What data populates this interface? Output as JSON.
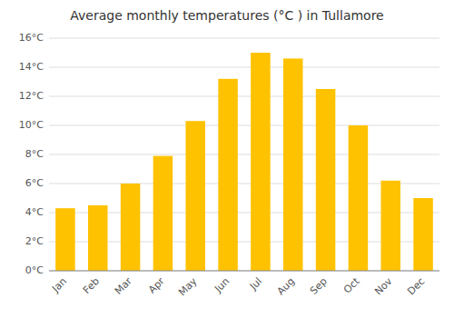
{
  "chart_data": {
    "type": "bar",
    "title": "Average monthly temperatures (°C ) in Tullamore",
    "categories": [
      "Jan",
      "Feb",
      "Mar",
      "Apr",
      "May",
      "Jun",
      "Jul",
      "Aug",
      "Sep",
      "Oct",
      "Nov",
      "Dec"
    ],
    "values": [
      4.3,
      4.5,
      6.0,
      7.9,
      10.3,
      13.2,
      15.0,
      14.6,
      12.5,
      10.0,
      6.2,
      5.0
    ],
    "color": "#FFC200",
    "ylim": [
      0,
      16
    ],
    "yticks": [
      {
        "value": 0,
        "label": "0°C"
      },
      {
        "value": 2,
        "label": "2°C"
      },
      {
        "value": 4,
        "label": "4°C"
      },
      {
        "value": 6,
        "label": "6°C"
      },
      {
        "value": 8,
        "label": "8°C"
      },
      {
        "value": 10,
        "label": "10°C"
      },
      {
        "value": 12,
        "label": "12°C"
      },
      {
        "value": 14,
        "label": "14°C"
      },
      {
        "value": 16,
        "label": "16°C"
      }
    ],
    "grid": true
  }
}
